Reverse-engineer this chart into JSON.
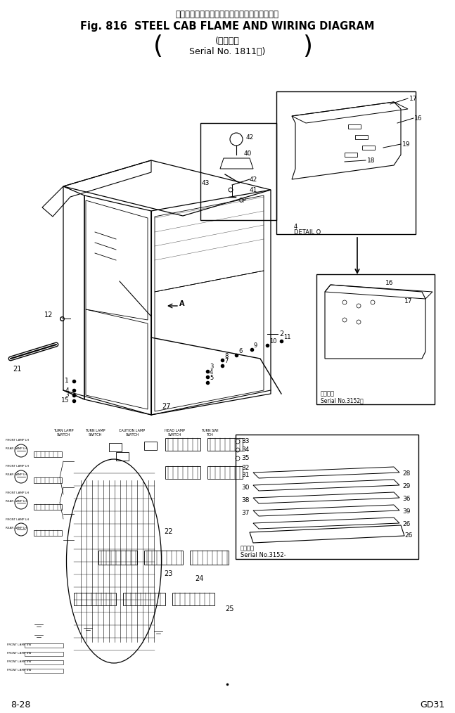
{
  "title_japanese": "スチール　キャブ　フレーム　および　配線図",
  "title_english": "Fig. 816  STEEL CAB FLAME AND WIRING DIAGRAM",
  "subtitle_line1": "(適用号機",
  "subtitle_line2": "Serial No. 1811～)",
  "footer_left": "8-28",
  "footer_right": "GD31",
  "bg_color": "#ffffff",
  "lc": "#000000",
  "fig_width": 6.47,
  "fig_height": 10.14,
  "dpi": 100
}
